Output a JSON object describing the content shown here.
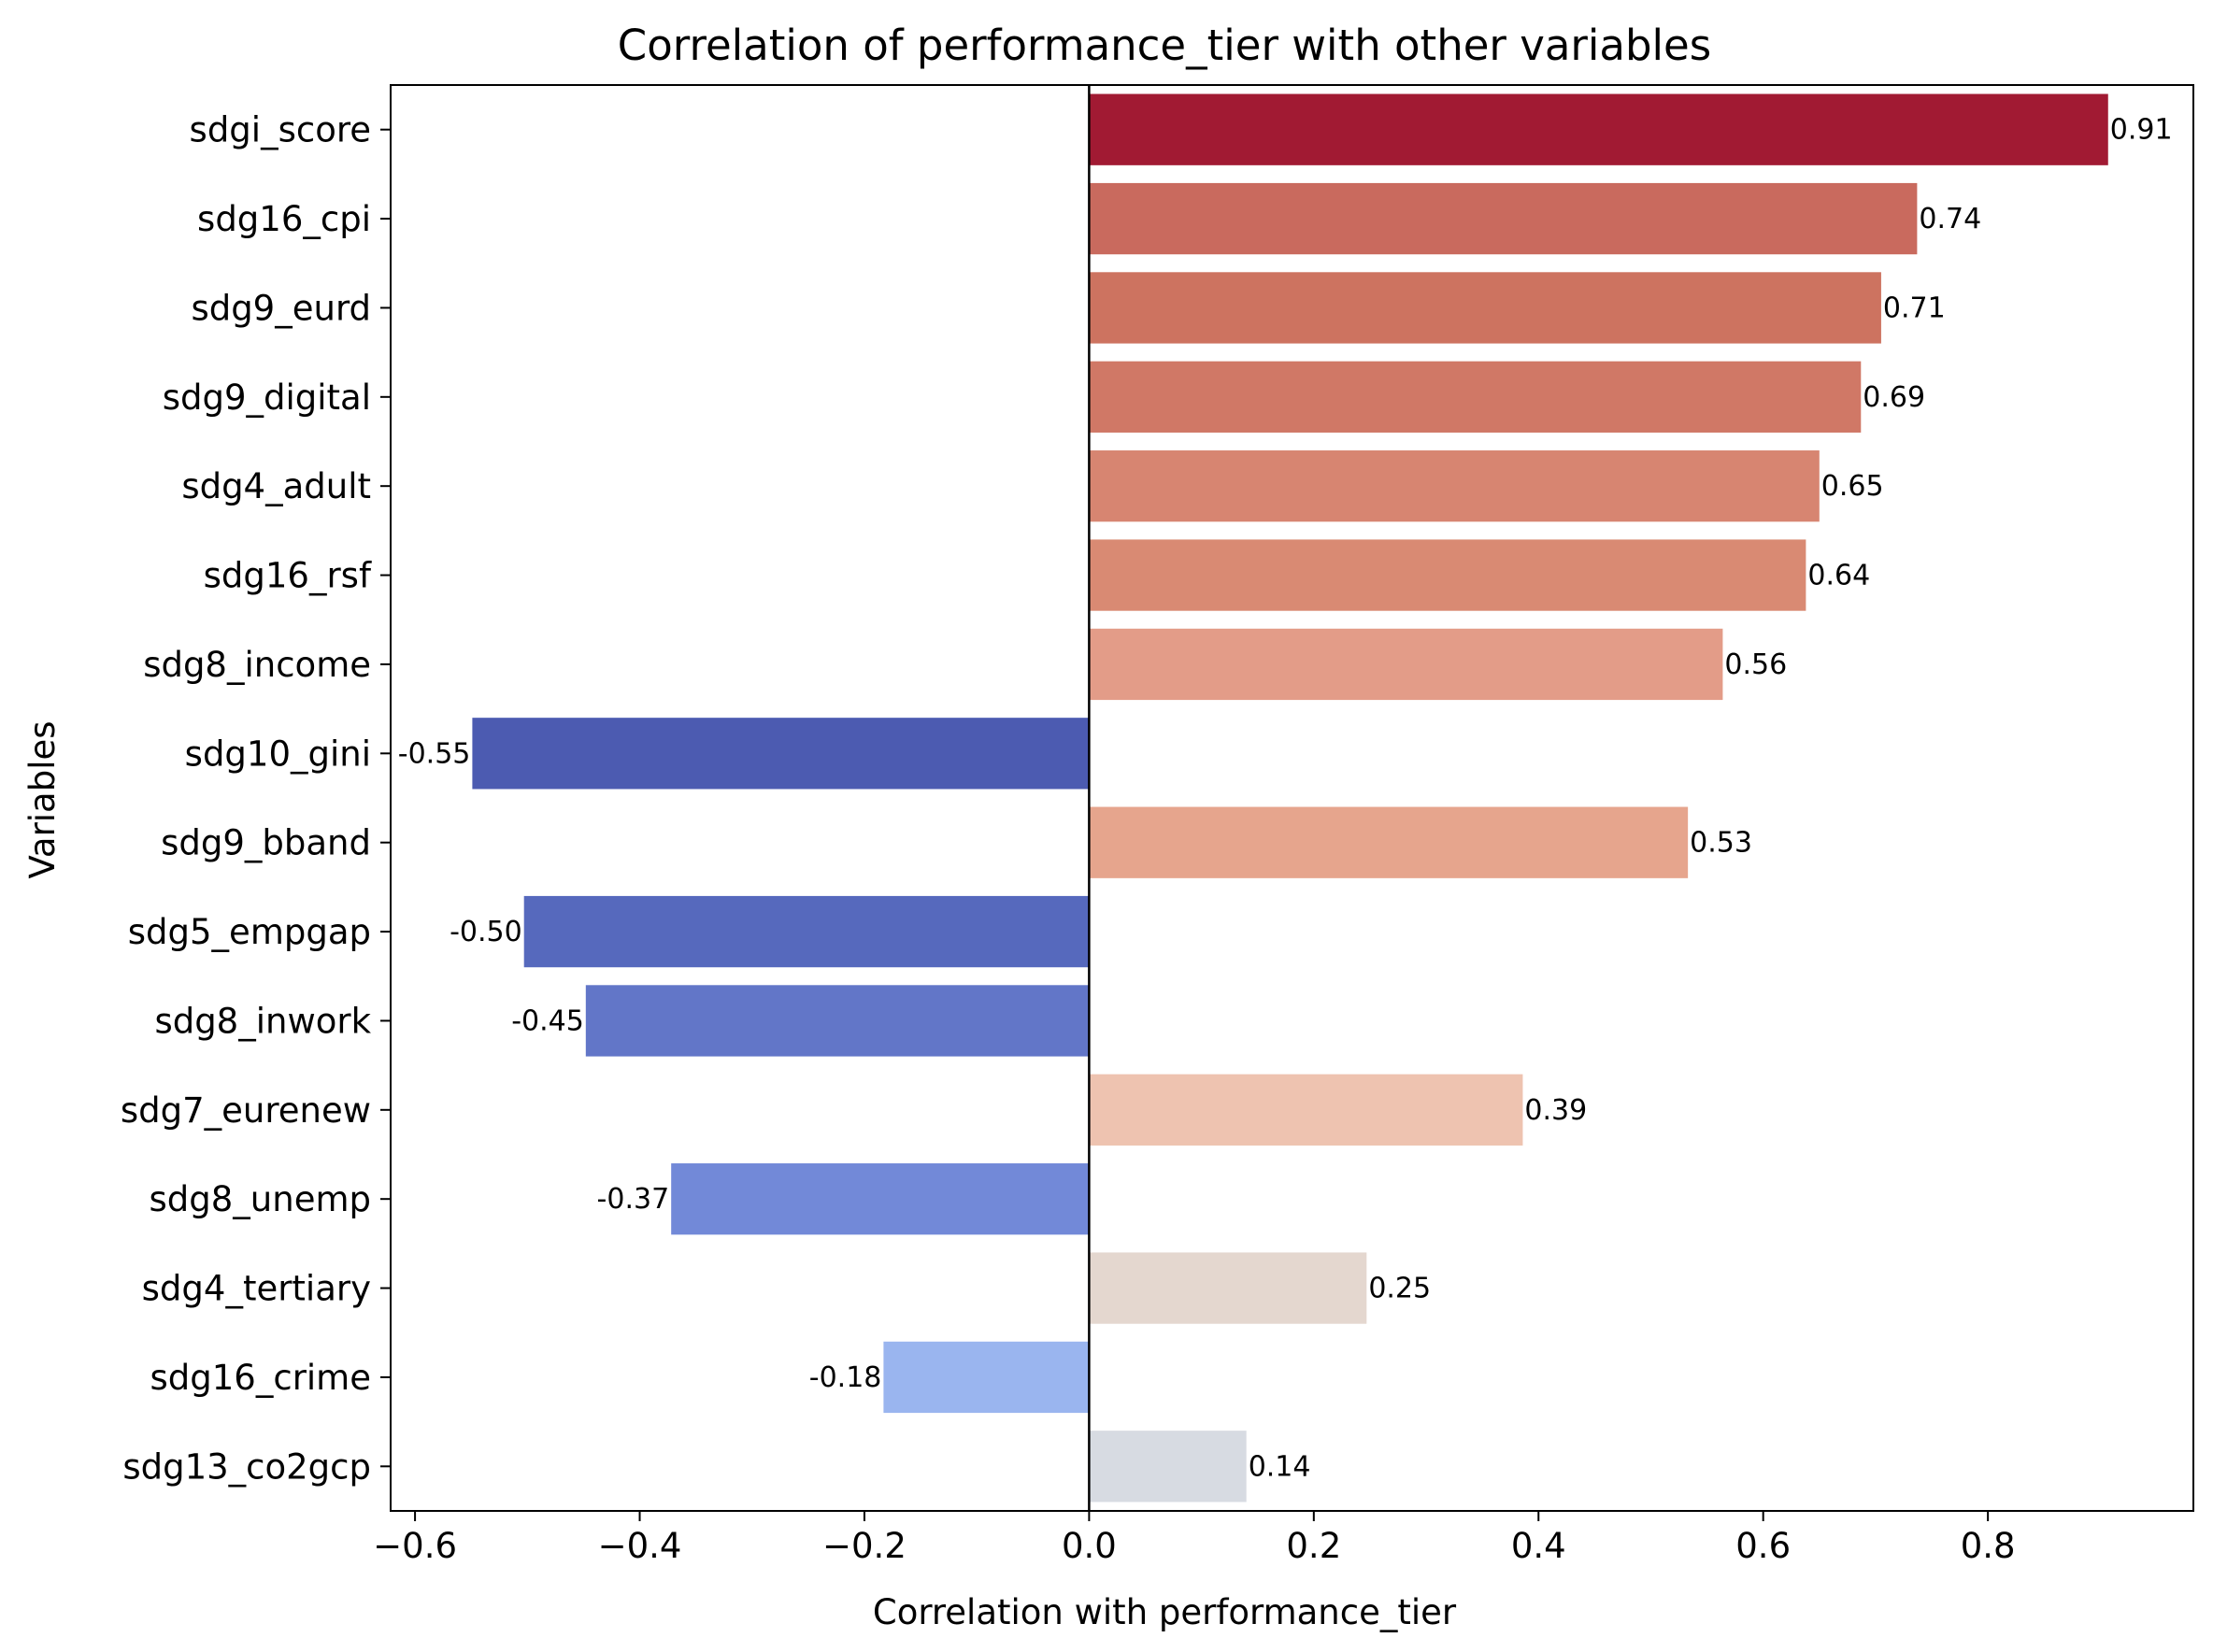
{
  "chart_data": {
    "type": "bar",
    "orientation": "horizontal",
    "title": "Correlation of performance_tier with other variables",
    "xlabel": "Correlation with performance_tier",
    "ylabel": "Variables",
    "xlim": [
      -0.6217,
      0.9829
    ],
    "xticks": [
      -0.6,
      -0.4,
      -0.2,
      0.0,
      0.2,
      0.4,
      0.6,
      0.8
    ],
    "xtick_labels": [
      "−0.6",
      "−0.4",
      "−0.2",
      "0.0",
      "0.2",
      "0.4",
      "0.6",
      "0.8"
    ],
    "grid": false,
    "legend": "none",
    "colormap": "coolwarm",
    "categories": [
      "sdgi_score",
      "sdg16_cpi",
      "sdg9_eurd",
      "sdg9_digital",
      "sdg4_adult",
      "sdg16_rsf",
      "sdg8_income",
      "sdg10_gini",
      "sdg9_bband",
      "sdg5_empgap",
      "sdg8_inwork",
      "sdg7_eurenew",
      "sdg8_unemp",
      "sdg4_tertiary",
      "sdg16_crime",
      "sdg13_co2gcp"
    ],
    "values": [
      0.907,
      0.737,
      0.705,
      0.687,
      0.65,
      0.638,
      0.564,
      -0.549,
      0.533,
      -0.503,
      -0.448,
      0.386,
      -0.372,
      0.247,
      -0.183,
      0.14
    ],
    "value_labels": [
      "0.91",
      "0.74",
      "0.71",
      "0.69",
      "0.65",
      "0.64",
      "0.56",
      "-0.55",
      "0.53",
      "-0.50",
      "-0.45",
      "0.39",
      "-0.37",
      "0.25",
      "-0.18",
      "0.14"
    ],
    "colors": [
      "#a11a33",
      "#c96a5e",
      "#cd7360",
      "#d07866",
      "#d78571",
      "#d98a73",
      "#e39c88",
      "#4c5bb1",
      "#e6a58d",
      "#5669bd",
      "#6276c8",
      "#eec3b0",
      "#7289d8",
      "#e4d7cf",
      "#9ab5ef",
      "#d7dbe2"
    ]
  }
}
